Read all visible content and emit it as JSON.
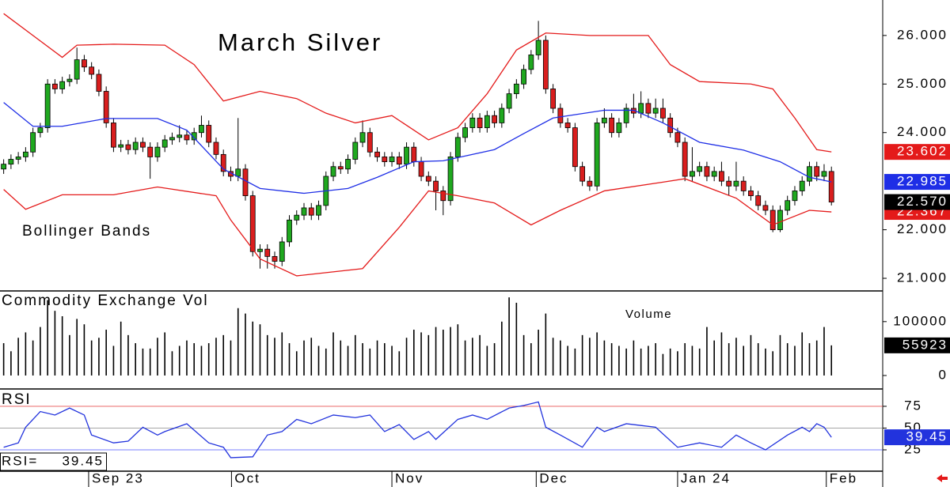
{
  "chart_data": [
    {
      "type": "candlestick",
      "title": "March Silver",
      "annotation": "Bollinger Bands",
      "xlim": [
        -0.5,
        120
      ],
      "ylim": [
        20.74,
        26.73
      ],
      "yticks": [
        {
          "value": 21,
          "label": "21.000"
        },
        {
          "value": 22,
          "label": "22.000"
        },
        {
          "value": 24,
          "label": "24.000"
        },
        {
          "value": 25,
          "label": "25.000"
        },
        {
          "value": 26,
          "label": "26.000"
        }
      ],
      "up_color": "#1fa81f",
      "down_color": "#d91e1e",
      "close_label": "22.570",
      "close_color": "#000000",
      "open": [
        23.25,
        23.35,
        23.45,
        23.5,
        23.6,
        24.0,
        24.1,
        25.0,
        24.9,
        25.05,
        25.1,
        25.5,
        25.35,
        25.2,
        24.85,
        24.2,
        23.7,
        23.75,
        23.65,
        23.8,
        23.7,
        23.5,
        23.7,
        23.85,
        23.9,
        23.95,
        23.85,
        24.0,
        24.15,
        23.8,
        23.55,
        23.2,
        23.1,
        23.25,
        22.7,
        21.55,
        21.6,
        21.45,
        21.35,
        21.75,
        22.2,
        22.3,
        22.45,
        22.3,
        22.5,
        23.1,
        23.3,
        23.25,
        23.45,
        23.8,
        24.0,
        23.6,
        23.5,
        23.4,
        23.5,
        23.35,
        23.7,
        23.4,
        23.1,
        23.0,
        22.8,
        22.6,
        23.5,
        23.9,
        24.1,
        24.3,
        24.1,
        24.35,
        24.2,
        24.5,
        24.8,
        25.0,
        25.3,
        25.6,
        25.9,
        24.9,
        24.5,
        24.2,
        24.1,
        23.3,
        23.0,
        22.9,
        24.2,
        24.3,
        24.0,
        24.2,
        24.5,
        24.4,
        24.6,
        24.4,
        24.5,
        24.3,
        24.0,
        23.8,
        23.1,
        23.2,
        23.3,
        23.1,
        23.2,
        23.0,
        22.9,
        23.0,
        22.8,
        22.7,
        22.5,
        22.4,
        22.0,
        22.4,
        22.6,
        22.8,
        23.0,
        23.3,
        23.1,
        23.2
      ],
      "high": [
        23.45,
        23.55,
        23.6,
        23.7,
        24.1,
        24.2,
        25.1,
        25.1,
        25.15,
        25.2,
        25.75,
        25.6,
        25.45,
        25.3,
        24.95,
        24.3,
        23.85,
        23.85,
        23.9,
        23.9,
        23.8,
        23.8,
        23.95,
        24.0,
        24.15,
        24.05,
        24.1,
        24.35,
        24.25,
        23.9,
        23.65,
        23.3,
        24.3,
        23.35,
        22.8,
        21.7,
        21.7,
        21.55,
        21.85,
        22.3,
        22.4,
        22.55,
        22.55,
        22.6,
        23.2,
        23.4,
        23.4,
        23.55,
        23.9,
        24.25,
        24.1,
        23.7,
        23.6,
        23.6,
        23.6,
        23.8,
        23.8,
        23.5,
        23.2,
        23.1,
        22.9,
        23.6,
        24.0,
        24.2,
        24.4,
        24.4,
        24.45,
        24.45,
        24.6,
        24.9,
        25.1,
        25.4,
        25.7,
        26.3,
        26.0,
        25.0,
        24.6,
        24.3,
        24.2,
        23.4,
        23.1,
        24.3,
        24.5,
        24.4,
        24.3,
        24.6,
        24.8,
        24.85,
        24.7,
        24.7,
        24.7,
        24.4,
        24.1,
        23.9,
        23.7,
        23.4,
        23.4,
        23.3,
        23.4,
        23.1,
        23.4,
        23.1,
        22.9,
        22.8,
        22.6,
        22.5,
        22.5,
        22.7,
        22.9,
        23.1,
        23.4,
        23.4,
        23.35,
        23.3
      ],
      "low": [
        23.15,
        23.25,
        23.35,
        23.4,
        23.5,
        23.9,
        24.0,
        24.8,
        24.8,
        24.95,
        25.0,
        25.25,
        25.1,
        24.75,
        24.1,
        23.6,
        23.6,
        23.55,
        23.55,
        23.6,
        23.05,
        23.4,
        23.6,
        23.75,
        23.8,
        23.75,
        23.75,
        23.9,
        23.7,
        23.45,
        23.1,
        23.0,
        23.0,
        22.6,
        21.45,
        21.2,
        21.2,
        21.2,
        21.25,
        21.65,
        22.1,
        22.2,
        22.2,
        22.2,
        22.4,
        23.0,
        23.15,
        23.15,
        23.35,
        23.7,
        23.5,
        23.4,
        23.3,
        23.3,
        23.25,
        23.25,
        23.3,
        23.0,
        22.9,
        22.4,
        22.3,
        22.5,
        23.4,
        23.8,
        24.0,
        24.0,
        24.0,
        24.1,
        24.1,
        24.4,
        24.7,
        24.9,
        25.2,
        25.5,
        24.8,
        24.4,
        24.1,
        24.0,
        23.2,
        22.9,
        22.8,
        22.8,
        24.1,
        23.9,
        23.9,
        24.1,
        24.3,
        24.3,
        24.3,
        24.3,
        24.2,
        23.9,
        23.7,
        23.0,
        23.0,
        23.1,
        23.0,
        23.0,
        22.9,
        22.7,
        22.8,
        22.7,
        22.6,
        22.4,
        22.3,
        21.95,
        21.95,
        22.3,
        22.5,
        22.7,
        22.9,
        23.0,
        23.0,
        22.5
      ],
      "close": [
        23.35,
        23.45,
        23.5,
        23.6,
        24.0,
        24.1,
        25.0,
        24.9,
        25.05,
        25.1,
        25.5,
        25.35,
        25.2,
        24.85,
        24.2,
        23.7,
        23.75,
        23.65,
        23.8,
        23.7,
        23.5,
        23.7,
        23.85,
        23.9,
        23.95,
        23.85,
        24.0,
        24.15,
        23.8,
        23.55,
        23.2,
        23.1,
        23.25,
        22.7,
        21.55,
        21.6,
        21.45,
        21.35,
        21.75,
        22.2,
        22.3,
        22.45,
        22.3,
        22.5,
        23.1,
        23.3,
        23.25,
        23.45,
        23.8,
        24.0,
        23.6,
        23.5,
        23.4,
        23.5,
        23.35,
        23.7,
        23.4,
        23.1,
        23.0,
        22.8,
        22.6,
        23.5,
        23.9,
        24.1,
        24.3,
        24.1,
        24.35,
        24.2,
        24.5,
        24.8,
        25.0,
        25.3,
        25.6,
        25.9,
        24.9,
        24.5,
        24.2,
        24.1,
        23.3,
        23.0,
        22.9,
        24.2,
        24.3,
        24.0,
        24.2,
        24.5,
        24.4,
        24.6,
        24.4,
        24.5,
        24.3,
        24.0,
        23.8,
        23.1,
        23.2,
        23.3,
        23.1,
        23.2,
        23.0,
        22.9,
        23.0,
        22.8,
        22.7,
        22.5,
        22.4,
        22.0,
        22.4,
        22.6,
        22.8,
        23.0,
        23.3,
        23.1,
        23.2,
        22.57
      ],
      "series": [
        {
          "color": "#e41a1a",
          "x": [
            0,
            4,
            8,
            10,
            15,
            22,
            26,
            30,
            35,
            40,
            44,
            48,
            53,
            58,
            62,
            66,
            70,
            74,
            80,
            88,
            91,
            95,
            102,
            105,
            108,
            111,
            113
          ],
          "values": [
            26.45,
            26.0,
            25.55,
            25.8,
            25.82,
            25.8,
            25.4,
            24.65,
            24.85,
            24.7,
            24.4,
            24.2,
            24.35,
            23.85,
            24.1,
            24.8,
            25.7,
            26.05,
            26.0,
            26.0,
            25.4,
            25.05,
            25.0,
            24.9,
            24.3,
            23.65,
            23.602
          ]
        },
        {
          "color": "#1e2ee6",
          "x": [
            0,
            4,
            8,
            14,
            21,
            25,
            30,
            35,
            41,
            47,
            51,
            56,
            60,
            67,
            71,
            75,
            82,
            86,
            90,
            95,
            101,
            106,
            110,
            113
          ],
          "values": [
            24.62,
            24.13,
            24.13,
            24.29,
            24.29,
            24.05,
            23.25,
            22.85,
            22.75,
            22.85,
            23.08,
            23.4,
            23.42,
            23.65,
            23.98,
            24.3,
            24.46,
            24.46,
            24.2,
            23.8,
            23.64,
            23.4,
            23.08,
            22.985
          ]
        },
        {
          "color": "#e41a1a",
          "x": [
            0,
            3,
            8,
            15,
            21,
            29,
            31,
            35,
            40,
            49,
            54,
            58,
            62,
            67,
            72,
            76,
            82,
            90,
            93,
            100,
            105,
            110,
            113
          ],
          "values": [
            22.83,
            22.42,
            22.72,
            22.72,
            22.88,
            22.7,
            22.2,
            21.4,
            21.05,
            21.2,
            22.05,
            22.8,
            22.7,
            22.55,
            22.1,
            22.4,
            22.8,
            22.98,
            23.05,
            22.65,
            22.1,
            22.4,
            22.367
          ]
        }
      ]
    },
    {
      "type": "bar",
      "title": "Commodity Exchange Vol",
      "annotation": "Volume",
      "xlim": [
        -0.5,
        120
      ],
      "ylim": [
        -25000,
        154000
      ],
      "yticks": [
        0,
        100000
      ],
      "color": "#000000",
      "values": [
        60000,
        45000,
        70000,
        80000,
        65000,
        90000,
        140000,
        120000,
        110000,
        75000,
        105000,
        95000,
        65000,
        70000,
        85000,
        55000,
        100000,
        75000,
        60000,
        50000,
        50000,
        70000,
        80000,
        45000,
        55000,
        65000,
        60000,
        55000,
        60000,
        70000,
        75000,
        65000,
        125000,
        115000,
        100000,
        95000,
        75000,
        70000,
        80000,
        60000,
        45000,
        65000,
        70000,
        55000,
        50000,
        80000,
        65000,
        55000,
        75000,
        60000,
        50000,
        65000,
        60000,
        55000,
        45000,
        70000,
        85000,
        80000,
        75000,
        90000,
        85000,
        90000,
        95000,
        65000,
        70000,
        75000,
        55000,
        60000,
        100000,
        145000,
        135000,
        75000,
        60000,
        85000,
        115000,
        70000,
        65000,
        55000,
        50000,
        75000,
        70000,
        80000,
        65000,
        60000,
        55000,
        50000,
        65000,
        50000,
        55000,
        60000,
        40000,
        50000,
        45000,
        60000,
        55000,
        50000,
        90000,
        65000,
        80000,
        60000,
        70000,
        55000,
        75000,
        60000,
        50000,
        45000,
        75000,
        60000,
        55000,
        80000,
        60000,
        65000,
        90000,
        55923
      ]
    },
    {
      "type": "line",
      "title": "RSI",
      "readout": "RSI=",
      "xlim": [
        -0.5,
        120
      ],
      "ylim": [
        0.5,
        94
      ],
      "yticks": [
        25,
        50,
        75
      ],
      "grid": true,
      "grid_colors": [
        "#4a55ff",
        "#888888",
        "#e85050"
      ],
      "xticks": [
        {
          "value": 11.6,
          "label": "Sep 23"
        },
        {
          "value": 31.1,
          "label": "Oct"
        },
        {
          "value": 53.0,
          "label": "Nov"
        },
        {
          "value": 72.7,
          "label": "Dec"
        },
        {
          "value": 92.0,
          "label": "Jan 24"
        },
        {
          "value": 112.3,
          "label": "Feb"
        }
      ],
      "color": "#2233dd",
      "x": [
        0,
        2,
        3,
        5,
        7,
        9,
        11,
        12,
        15,
        17,
        19,
        21,
        22,
        25,
        28,
        30,
        31,
        34,
        36,
        38,
        40,
        42,
        45,
        48,
        50,
        52,
        54,
        56,
        58,
        59,
        62,
        64,
        66,
        69,
        71,
        73,
        74,
        76,
        79,
        81,
        82,
        85,
        87,
        89,
        92,
        95,
        98,
        100,
        102,
        104,
        107,
        109,
        110,
        111,
        112,
        113
      ],
      "values": [
        28,
        33,
        51,
        69,
        65,
        73,
        65,
        42,
        33,
        35,
        51,
        42,
        46,
        55,
        33,
        28,
        16,
        17,
        42,
        46,
        60,
        55,
        65,
        62,
        65,
        46,
        54,
        37,
        46,
        37,
        60,
        65,
        60,
        73,
        76,
        80,
        51,
        42,
        28,
        51,
        46,
        55,
        53,
        51,
        28,
        33,
        28,
        42,
        33,
        25,
        42,
        51,
        46,
        55,
        51,
        39.45
      ]
    }
  ]
}
